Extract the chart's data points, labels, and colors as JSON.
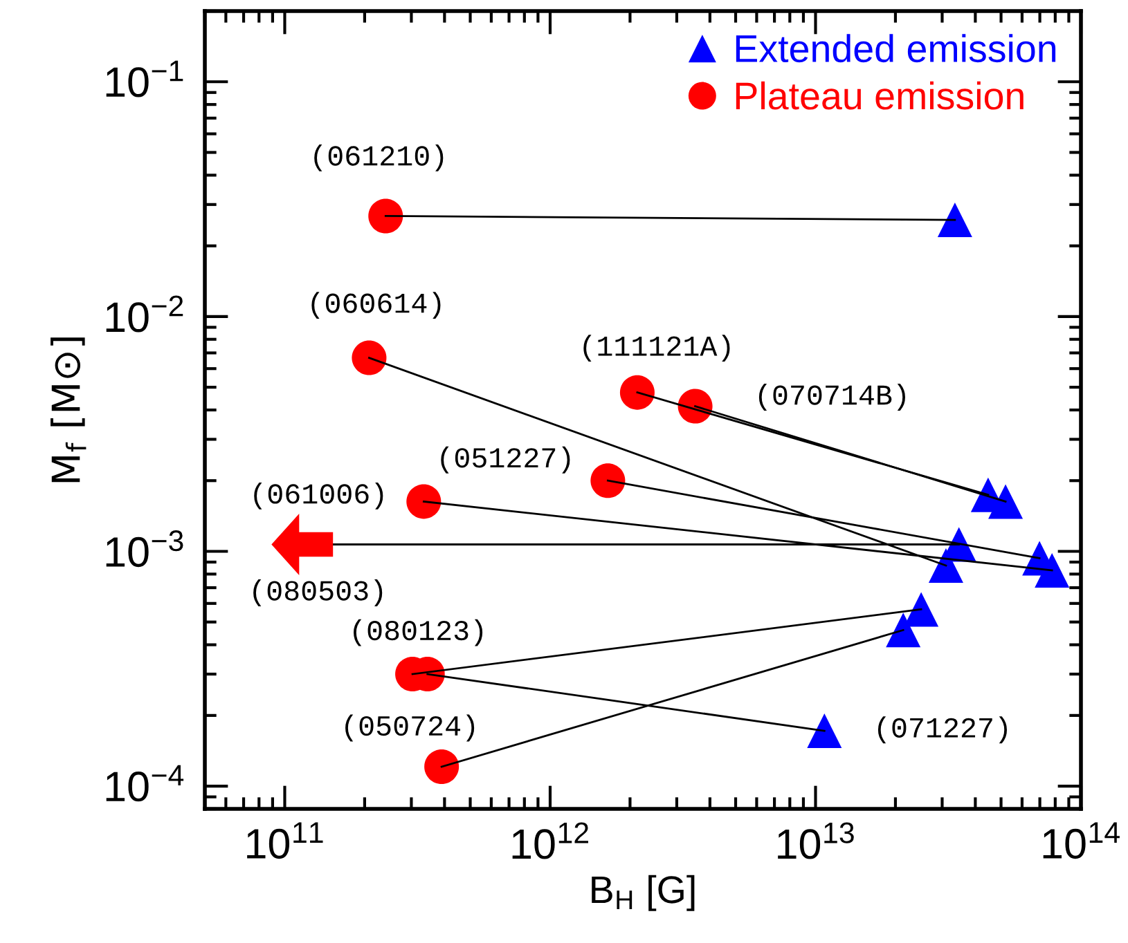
{
  "chart_data": {
    "type": "scatter",
    "xlabel": "B$_{H}$ [G]",
    "ylabel": "M$_{f}$ [M⊙]",
    "log": "xy",
    "xlim": [
      50000000000.0,
      100000000000000.0
    ],
    "ylim": [
      8e-05,
      0.2
    ],
    "xticks": [
      {
        "value": 100000000000.0,
        "label": "10$^{11}$"
      },
      {
        "value": 1000000000000.0,
        "label": "10$^{12}$"
      },
      {
        "value": 10000000000000.0,
        "label": "10$^{13}$"
      },
      {
        "value": 100000000000000.0,
        "label": "10$^{14}$"
      }
    ],
    "yticks": [
      {
        "value": 0.0001,
        "label": "10$^{−4}$"
      },
      {
        "value": 0.001,
        "label": "10$^{−3}$"
      },
      {
        "value": 0.01,
        "label": "10$^{−2}$"
      },
      {
        "value": 0.1,
        "label": "10$^{−1}$"
      }
    ],
    "grid": false,
    "legend": "top right",
    "series": [
      {
        "type": "line",
        "color": "#000000",
        "x": [
          240000000000.0,
          33500000000000.0
        ],
        "values": [
          0.0268,
          0.0258
        ]
      },
      {
        "type": "line",
        "color": "#000000",
        "x": [
          208000000000.0,
          31000000000000.0
        ],
        "values": [
          0.00667,
          0.00087
        ]
      },
      {
        "type": "line",
        "color": "#000000",
        "x": [
          2130000000000.0,
          44700000000000.0
        ],
        "values": [
          0.00475,
          0.00174
        ]
      },
      {
        "type": "line",
        "color": "#000000",
        "x": [
          3520000000000.0,
          52000000000000.0
        ],
        "values": [
          0.00415,
          0.00163
        ]
      },
      {
        "type": "line",
        "color": "#000000",
        "x": [
          1650000000000.0,
          69800000000000.0
        ],
        "values": [
          0.002,
          0.000935
        ]
      },
      {
        "type": "line",
        "color": "#000000",
        "x": [
          334000000000.0,
          77800000000000.0
        ],
        "values": [
          0.00163,
          0.00083
        ]
      },
      {
        "type": "line",
        "color": "#000000",
        "x": [
          152000000000.0,
          34700000000000.0
        ],
        "values": [
          0.00107,
          0.00107
        ]
      },
      {
        "type": "line",
        "color": "#000000",
        "x": [
          303000000000.0,
          25000000000000.0
        ],
        "values": [
          0.0003,
          0.000566
        ]
      },
      {
        "type": "line",
        "color": "#000000",
        "x": [
          345000000000.0,
          10800000000000.0
        ],
        "values": [
          0.0003,
          0.000172
        ]
      },
      {
        "type": "line",
        "color": "#000000",
        "x": [
          390000000000.0,
          21400000000000.0
        ],
        "values": [
          0.000121,
          0.000462
        ]
      },
      {
        "name": "Extended emission",
        "color": "#0000ff",
        "marker": "triangle",
        "x": [
          33500000000000.0,
          31000000000000.0,
          44700000000000.0,
          52000000000000.0,
          69800000000000.0,
          77800000000000.0,
          34700000000000.0,
          25000000000000.0,
          10800000000000.0,
          21400000000000.0
        ],
        "values": [
          0.0258,
          0.00087,
          0.00174,
          0.00163,
          0.000935,
          0.00083,
          0.00107,
          0.000566,
          0.000172,
          0.000462
        ]
      },
      {
        "name": "Plateau emission",
        "color": "#ff0000",
        "marker": "circle",
        "x": [
          240000000000.0,
          208000000000.0,
          2130000000000.0,
          3520000000000.0,
          1650000000000.0,
          334000000000.0,
          303000000000.0,
          345000000000.0,
          390000000000.0
        ],
        "values": [
          0.0268,
          0.00667,
          0.00475,
          0.00415,
          0.002,
          0.00163,
          0.0003,
          0.0003,
          0.000121
        ]
      }
    ],
    "annotations": [
      {
        "text": "(061210)",
        "x": 240000000000.0,
        "y": 0.0268
      },
      {
        "text": "(060614)",
        "x": 208000000000.0,
        "y": 0.00667
      },
      {
        "text": "(111121A)",
        "x": 2130000000000.0,
        "y": 0.00475
      },
      "(070714B)",
      {
        "text": "(051227)",
        "x": 1650000000000.0,
        "y": 0.002
      },
      {
        "text": "(061006)",
        "x": 334000000000.0,
        "y": 0.00163
      },
      {
        "text": "(080503)",
        "x": 152000000000.0,
        "y": 0.00107
      },
      {
        "text": "(080123)",
        "x": 303000000000.0,
        "y": 0.0003
      },
      {
        "text": "(050724)",
        "x": 390000000000.0,
        "y": 0.000121
      },
      "(071227)"
    ]
  }
}
